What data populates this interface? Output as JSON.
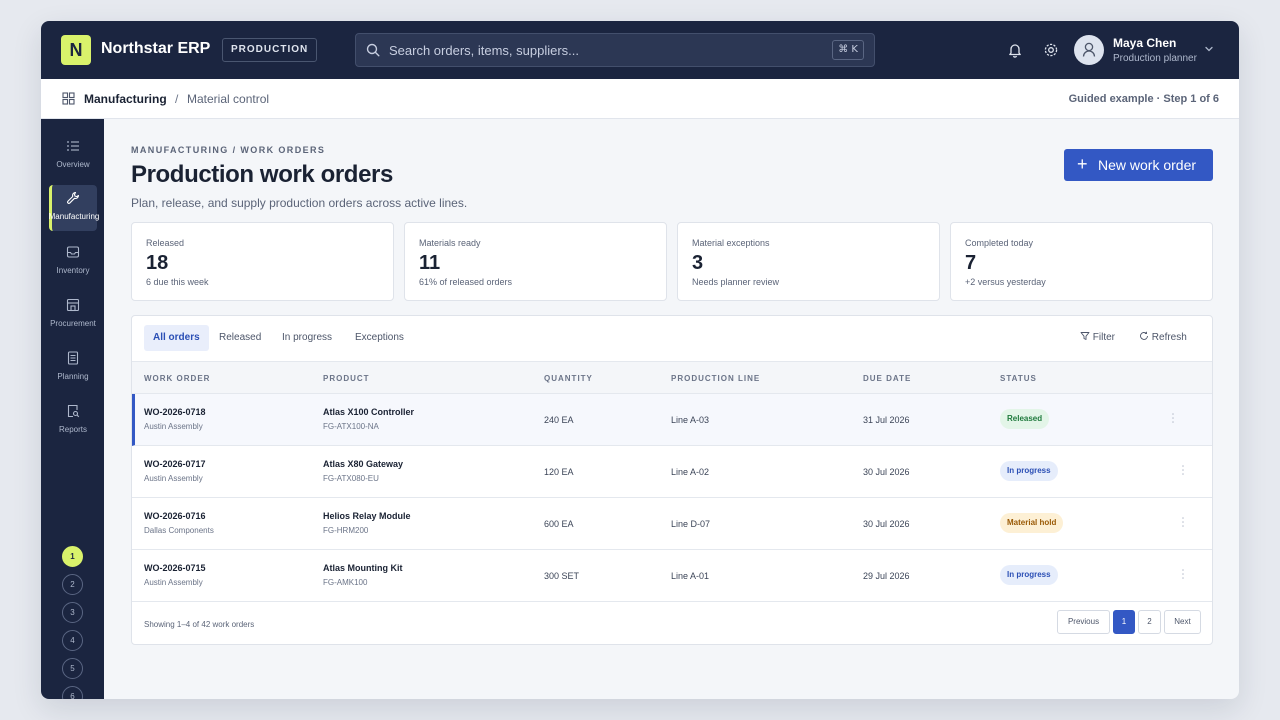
{
  "app": {
    "logo_letter": "N",
    "title": "Northstar ERP",
    "env_badge": "PRODUCTION",
    "search_placeholder": "Search orders, items, suppliers...",
    "search_shortcut": "⌘ K"
  },
  "user": {
    "name": "Maya Chen",
    "role": "Production planner"
  },
  "breadcrumb": {
    "main": "Manufacturing",
    "sep": "/",
    "sub": "Material control",
    "guide": "Guided example · Step 1 of 6"
  },
  "nav": [
    {
      "label": "Overview",
      "icon": "list-icon"
    },
    {
      "label": "Manufacturing",
      "icon": "wrench-icon",
      "active": true
    },
    {
      "label": "Inventory",
      "icon": "inbox-icon"
    },
    {
      "label": "Procurement",
      "icon": "store-icon"
    },
    {
      "label": "Planning",
      "icon": "document-icon"
    },
    {
      "label": "Reports",
      "icon": "report-search-icon"
    }
  ],
  "steps": [
    "1",
    "2",
    "3",
    "4",
    "5",
    "6"
  ],
  "page": {
    "eyebrow": "MANUFACTURING / WORK ORDERS",
    "title": "Production work orders",
    "description": "Plan, release, and supply production orders across active lines.",
    "new_button": "New work order"
  },
  "stats": [
    {
      "label": "Released",
      "value": "18",
      "note": "6 due this week"
    },
    {
      "label": "Materials ready",
      "value": "11",
      "note": "61% of released orders"
    },
    {
      "label": "Material exceptions",
      "value": "3",
      "note": "Needs planner review"
    },
    {
      "label": "Completed today",
      "value": "7",
      "note": "+2 versus yesterday"
    }
  ],
  "tabs": [
    "All orders",
    "Released",
    "In progress",
    "Exceptions"
  ],
  "toolbar": {
    "filter": "Filter",
    "refresh": "Refresh"
  },
  "columns": [
    "WORK ORDER",
    "PRODUCT",
    "QUANTITY",
    "PRODUCTION LINE",
    "DUE DATE",
    "STATUS"
  ],
  "rows": [
    {
      "id": "WO-2026-0718",
      "site": "Austin Assembly",
      "product": "Atlas X100 Controller",
      "sku": "FG-ATX100-NA",
      "qty": "240 EA",
      "line": "Line A-03",
      "due": "31 Jul 2026",
      "status": "Released"
    },
    {
      "id": "WO-2026-0717",
      "site": "Austin Assembly",
      "product": "Atlas X80 Gateway",
      "sku": "FG-ATX080-EU",
      "qty": "120 EA",
      "line": "Line A-02",
      "due": "30 Jul 2026",
      "status": "In progress"
    },
    {
      "id": "WO-2026-0716",
      "site": "Dallas Components",
      "product": "Helios Relay Module",
      "sku": "FG-HRM200",
      "qty": "600 EA",
      "line": "Line D-07",
      "due": "30 Jul 2026",
      "status": "Material hold"
    },
    {
      "id": "WO-2026-0715",
      "site": "Austin Assembly",
      "product": "Atlas Mounting Kit",
      "sku": "FG-AMK100",
      "qty": "300 SET",
      "line": "Line A-01",
      "due": "29 Jul 2026",
      "status": "In progress"
    }
  ],
  "footer": {
    "showing": "Showing 1–4 of 42 work orders",
    "previous": "Previous",
    "page1": "1",
    "page2": "2",
    "next": "Next"
  },
  "colors": {
    "accent": "#3358c4",
    "brand_lime": "#d9f26b",
    "nav_bg": "#1b2540",
    "status_released_bg": "#e3f5e8",
    "status_released_fg": "#1f7a3d",
    "status_progress_bg": "#e6edfb",
    "status_progress_fg": "#2b4fb5",
    "status_hold_bg": "#fdf0d5",
    "status_hold_fg": "#9a5a06"
  }
}
